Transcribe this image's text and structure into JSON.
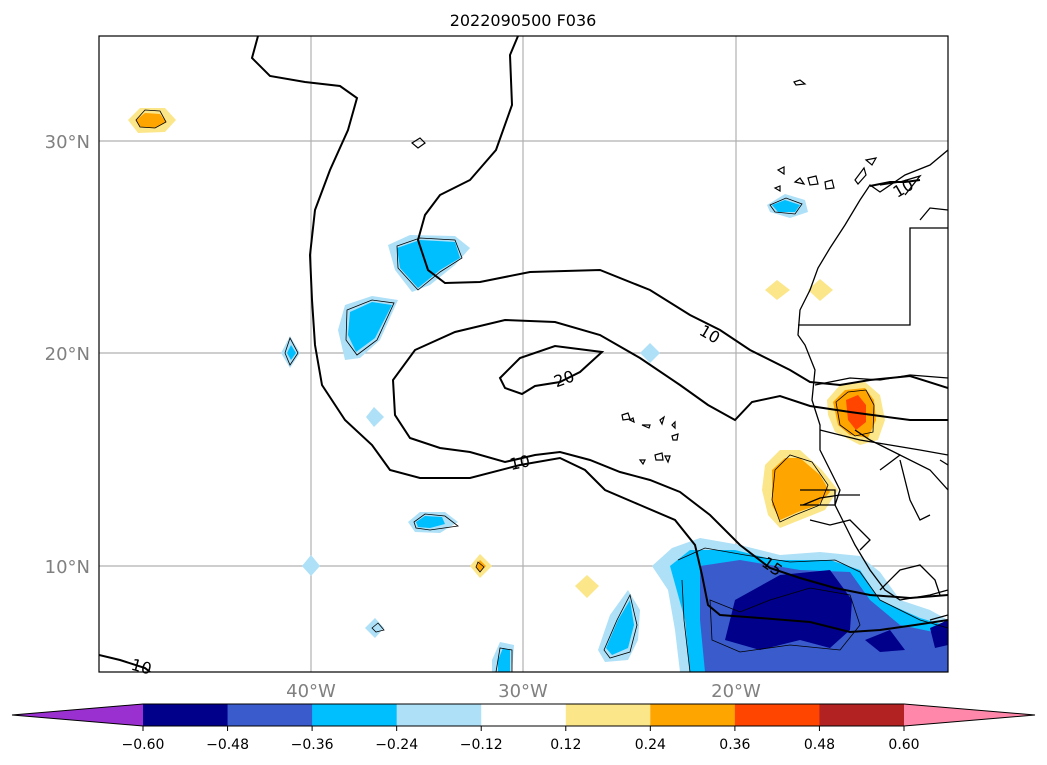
{
  "title": "2022090500 F036",
  "map": {
    "lon_range": [
      -50,
      -10
    ],
    "lat_range": [
      5,
      35
    ],
    "lon_ticks": [
      {
        "value": -40,
        "label": "40°W"
      },
      {
        "value": -30,
        "label": "30°W"
      },
      {
        "value": -20,
        "label": "20°W"
      }
    ],
    "lat_ticks": [
      {
        "value": 30,
        "label": "30°N"
      },
      {
        "value": 20,
        "label": "20°N"
      },
      {
        "value": 10,
        "label": "10°N"
      }
    ],
    "grid": true,
    "contour_labels": [
      "10",
      "20",
      "10",
      "15",
      "10",
      "10"
    ]
  },
  "colorbar": {
    "ticks": [
      "−0.60",
      "−0.48",
      "−0.36",
      "−0.24",
      "−0.12",
      "0.12",
      "0.24",
      "0.36",
      "0.48",
      "0.60"
    ],
    "under_color": "#9b30d0",
    "over_color": "#ff88aa",
    "colors": [
      "#00008b",
      "#3a5bcc",
      "#00bfff",
      "#aee0f7",
      "#ffffff",
      "#fce68a",
      "#ffa500",
      "#ff4500",
      "#b22222"
    ]
  }
}
